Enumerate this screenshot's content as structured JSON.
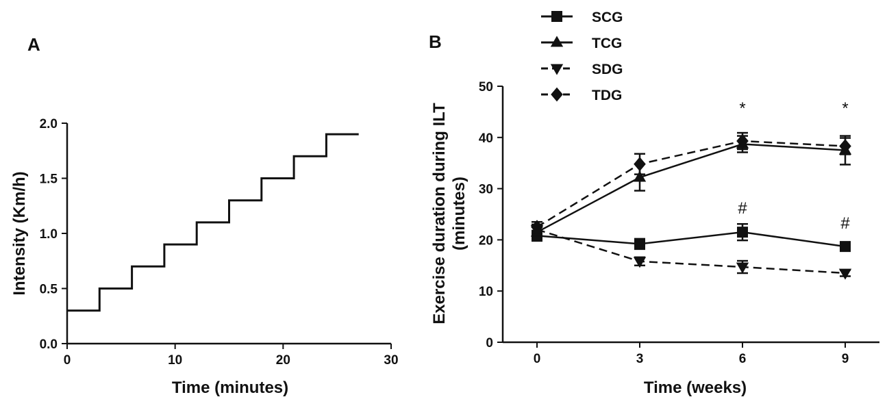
{
  "chart_data": [
    {
      "panel_label": "A",
      "type": "line",
      "step": true,
      "xlabel": "Time (minutes)",
      "ylabel": "Intensity (Km/h)",
      "xlim": [
        0,
        30
      ],
      "ylim": [
        0,
        2.0
      ],
      "xticks": [
        0,
        10,
        20,
        30
      ],
      "yticks": [
        0.0,
        0.5,
        1.0,
        1.5,
        2.0
      ],
      "xtick_labels": [
        "0",
        "10",
        "20",
        "30"
      ],
      "ytick_labels": [
        "0.0",
        "0.5",
        "1.0",
        "1.5",
        "2.0"
      ],
      "x": [
        0,
        3,
        6,
        9,
        12,
        15,
        18,
        21,
        24,
        27
      ],
      "y": [
        0.3,
        0.5,
        0.7,
        0.9,
        1.1,
        1.3,
        1.5,
        1.7,
        1.9,
        1.9
      ]
    },
    {
      "panel_label": "B",
      "type": "line",
      "xlabel": "Time (weeks)",
      "ylabel_line1": "Exercise duration during ILT",
      "ylabel_line2": "(minutes)",
      "xlim": [
        -1,
        10
      ],
      "ylim": [
        0,
        50
      ],
      "x": [
        0,
        3,
        6,
        9
      ],
      "xtick_labels": [
        "0",
        "3",
        "6",
        "9"
      ],
      "yticks": [
        0,
        10,
        20,
        30,
        40,
        50
      ],
      "ytick_labels": [
        "0",
        "10",
        "20",
        "30",
        "40",
        "50"
      ],
      "legend_position": "top-left",
      "series": [
        {
          "name": "SCG",
          "marker": "square",
          "dash": false,
          "values": [
            20.8,
            19.2,
            21.5,
            18.7
          ],
          "errors": [
            1.0,
            1.0,
            1.6,
            0.8
          ]
        },
        {
          "name": "TCG",
          "marker": "triangle-up",
          "dash": false,
          "values": [
            21.5,
            32.2,
            38.7,
            37.5
          ],
          "errors": [
            1.0,
            2.6,
            1.6,
            2.8
          ]
        },
        {
          "name": "SDG",
          "marker": "triangle-down",
          "dash": true,
          "values": [
            22.0,
            15.8,
            14.7,
            13.5
          ],
          "errors": [
            1.0,
            0.8,
            1.2,
            0.6
          ]
        },
        {
          "name": "TDG",
          "marker": "diamond",
          "dash": true,
          "values": [
            22.5,
            34.8,
            39.3,
            38.3
          ],
          "errors": [
            1.0,
            2.0,
            1.6,
            1.6
          ]
        }
      ],
      "annotations": [
        {
          "text": "*",
          "x": 6,
          "y": 46
        },
        {
          "text": "*",
          "x": 9,
          "y": 46
        },
        {
          "text": "#",
          "x": 6,
          "y": 26.5
        },
        {
          "text": "#",
          "x": 9,
          "y": 23.5
        }
      ]
    }
  ]
}
